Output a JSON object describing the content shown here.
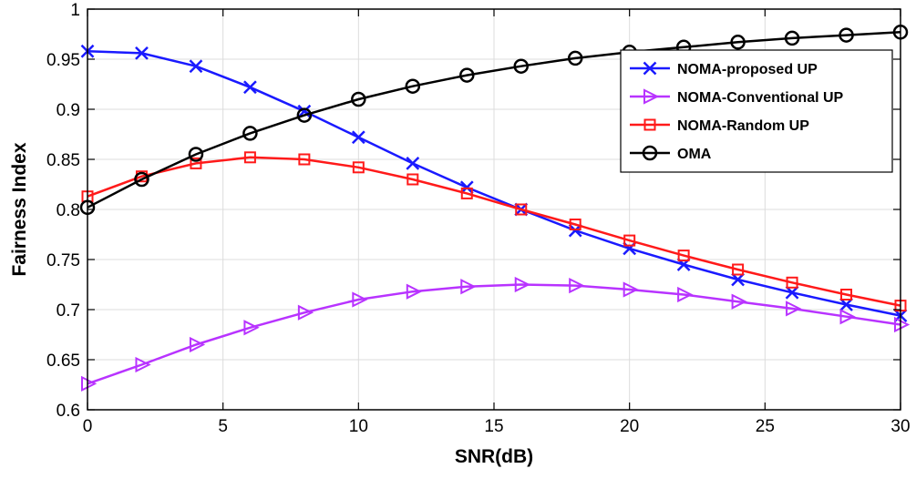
{
  "chart_data": {
    "type": "line",
    "title": "",
    "xlabel": "SNR(dB)",
    "ylabel": "Fairness Index",
    "xlim": [
      0,
      30
    ],
    "ylim": [
      0.6,
      1.0
    ],
    "x_ticks": [
      0,
      5,
      10,
      15,
      20,
      25,
      30
    ],
    "x_tick_labels": [
      "0",
      "5",
      "10",
      "15",
      "20",
      "25",
      "30"
    ],
    "y_ticks": [
      0.6,
      0.65,
      0.7,
      0.75,
      0.8,
      0.85,
      0.9,
      0.95,
      1.0
    ],
    "y_tick_labels": [
      "0.6",
      "0.65",
      "0.7",
      "0.75",
      "0.8",
      "0.85",
      "0.9",
      "0.95",
      "1"
    ],
    "grid": true,
    "legend_position": "top-right",
    "x": [
      0,
      2,
      4,
      6,
      8,
      10,
      12,
      14,
      16,
      18,
      20,
      22,
      24,
      26,
      28,
      30
    ],
    "series": [
      {
        "name": "NOMA-proposed UP",
        "color": "#1a1aff",
        "marker": "x",
        "values": [
          0.958,
          0.956,
          0.943,
          0.922,
          0.898,
          0.872,
          0.846,
          0.822,
          0.8,
          0.779,
          0.761,
          0.745,
          0.73,
          0.717,
          0.705,
          0.694
        ]
      },
      {
        "name": "NOMA-Conventional UP",
        "color": "#b833ff",
        "marker": "triangle-right",
        "values": [
          0.626,
          0.645,
          0.665,
          0.682,
          0.697,
          0.71,
          0.718,
          0.723,
          0.725,
          0.724,
          0.72,
          0.715,
          0.708,
          0.701,
          0.693,
          0.685
        ]
      },
      {
        "name": "NOMA-Random UP",
        "color": "#ff1a1a",
        "marker": "square",
        "values": [
          0.813,
          0.833,
          0.846,
          0.852,
          0.85,
          0.842,
          0.83,
          0.816,
          0.8,
          0.785,
          0.769,
          0.754,
          0.74,
          0.727,
          0.715,
          0.704
        ]
      },
      {
        "name": "OMA",
        "color": "#000000",
        "marker": "circle",
        "values": [
          0.802,
          0.83,
          0.855,
          0.876,
          0.894,
          0.91,
          0.923,
          0.934,
          0.943,
          0.951,
          0.957,
          0.962,
          0.967,
          0.971,
          0.974,
          0.977
        ]
      }
    ]
  }
}
